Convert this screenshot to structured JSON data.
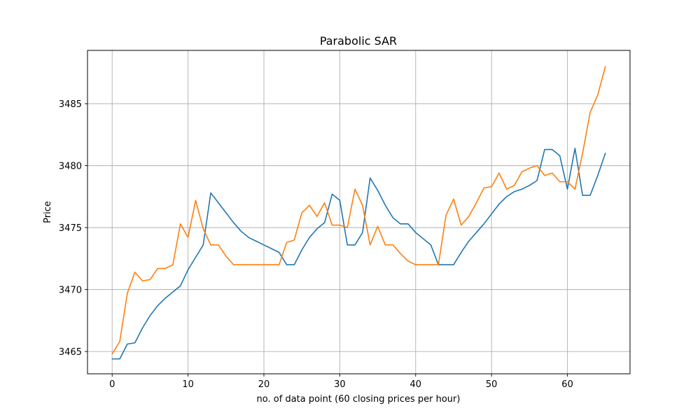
{
  "chart_data": {
    "type": "line",
    "title": "Parabolic SAR",
    "xlabel": "no. of data point (60 closing prices per hour)",
    "ylabel": "Price",
    "xlim": [
      -3.25,
      68.25
    ],
    "ylim": [
      3463.2,
      3489.3
    ],
    "xticks": [
      0,
      10,
      20,
      30,
      40,
      50,
      60
    ],
    "yticks": [
      3465,
      3470,
      3475,
      3480,
      3485
    ],
    "grid": true,
    "series": [
      {
        "color": "#1f77b4",
        "x": [
          0,
          1,
          2,
          3,
          4,
          5,
          6,
          7,
          8,
          9,
          10,
          11,
          12,
          13,
          14,
          15,
          16,
          17,
          18,
          19,
          20,
          21,
          22,
          23,
          24,
          25,
          26,
          27,
          28,
          29,
          30,
          31,
          32,
          33,
          34,
          35,
          36,
          37,
          38,
          39,
          40,
          41,
          42,
          43,
          44,
          45,
          46,
          47,
          48,
          49,
          50,
          51,
          52,
          53,
          54,
          55,
          56,
          57,
          58,
          59,
          60,
          61,
          62,
          63,
          64,
          65
        ],
        "y": [
          3464.4,
          3464.4,
          3465.6,
          3465.7,
          3466.9,
          3467.9,
          3468.7,
          3469.3,
          3469.8,
          3470.3,
          3471.6,
          3472.6,
          3473.6,
          3477.8,
          3477.0,
          3476.2,
          3475.4,
          3474.7,
          3474.2,
          3473.9,
          3473.6,
          3473.3,
          3473.0,
          3472.0,
          3472.0,
          3473.2,
          3474.2,
          3474.9,
          3475.4,
          3477.7,
          3477.2,
          3473.6,
          3473.6,
          3474.6,
          3479.0,
          3478.0,
          3476.8,
          3475.8,
          3475.3,
          3475.3,
          3474.6,
          3474.1,
          3473.6,
          3472.0,
          3472.0,
          3472.0,
          3473.0,
          3473.9,
          3474.6,
          3475.3,
          3476.1,
          3476.9,
          3477.5,
          3477.9,
          3478.1,
          3478.4,
          3478.8,
          3481.3,
          3481.3,
          3480.8,
          3478.1,
          3481.4,
          3477.6,
          3477.6,
          3479.2,
          3481.0
        ]
      },
      {
        "color": "#ff7f0e",
        "x": [
          0,
          1,
          2,
          3,
          4,
          5,
          6,
          7,
          8,
          9,
          10,
          11,
          12,
          13,
          14,
          15,
          16,
          17,
          18,
          19,
          20,
          21,
          22,
          23,
          24,
          25,
          26,
          27,
          28,
          29,
          30,
          31,
          32,
          33,
          34,
          35,
          36,
          37,
          38,
          39,
          40,
          41,
          42,
          43,
          44,
          45,
          46,
          47,
          48,
          49,
          50,
          51,
          52,
          53,
          54,
          55,
          56,
          57,
          58,
          59,
          60,
          61,
          62,
          63,
          64,
          65
        ],
        "y": [
          3464.8,
          3465.8,
          3469.7,
          3471.4,
          3470.7,
          3470.8,
          3471.7,
          3471.7,
          3472.0,
          3475.3,
          3474.2,
          3477.2,
          3474.9,
          3473.6,
          3473.6,
          3472.7,
          3472.0,
          3472.0,
          3472.0,
          3472.0,
          3472.0,
          3472.0,
          3472.0,
          3473.8,
          3474.0,
          3476.2,
          3476.8,
          3475.9,
          3477.0,
          3475.2,
          3475.2,
          3475.0,
          3478.1,
          3476.8,
          3473.6,
          3475.1,
          3473.6,
          3473.6,
          3472.9,
          3472.3,
          3472.0,
          3472.0,
          3472.0,
          3472.0,
          3476.0,
          3477.3,
          3475.2,
          3475.9,
          3477.0,
          3478.2,
          3478.3,
          3479.4,
          3478.1,
          3478.4,
          3479.5,
          3479.8,
          3480.0,
          3479.2,
          3479.4,
          3478.7,
          3478.7,
          3478.1,
          3481.0,
          3484.3,
          3485.7,
          3488.0
        ]
      }
    ]
  }
}
